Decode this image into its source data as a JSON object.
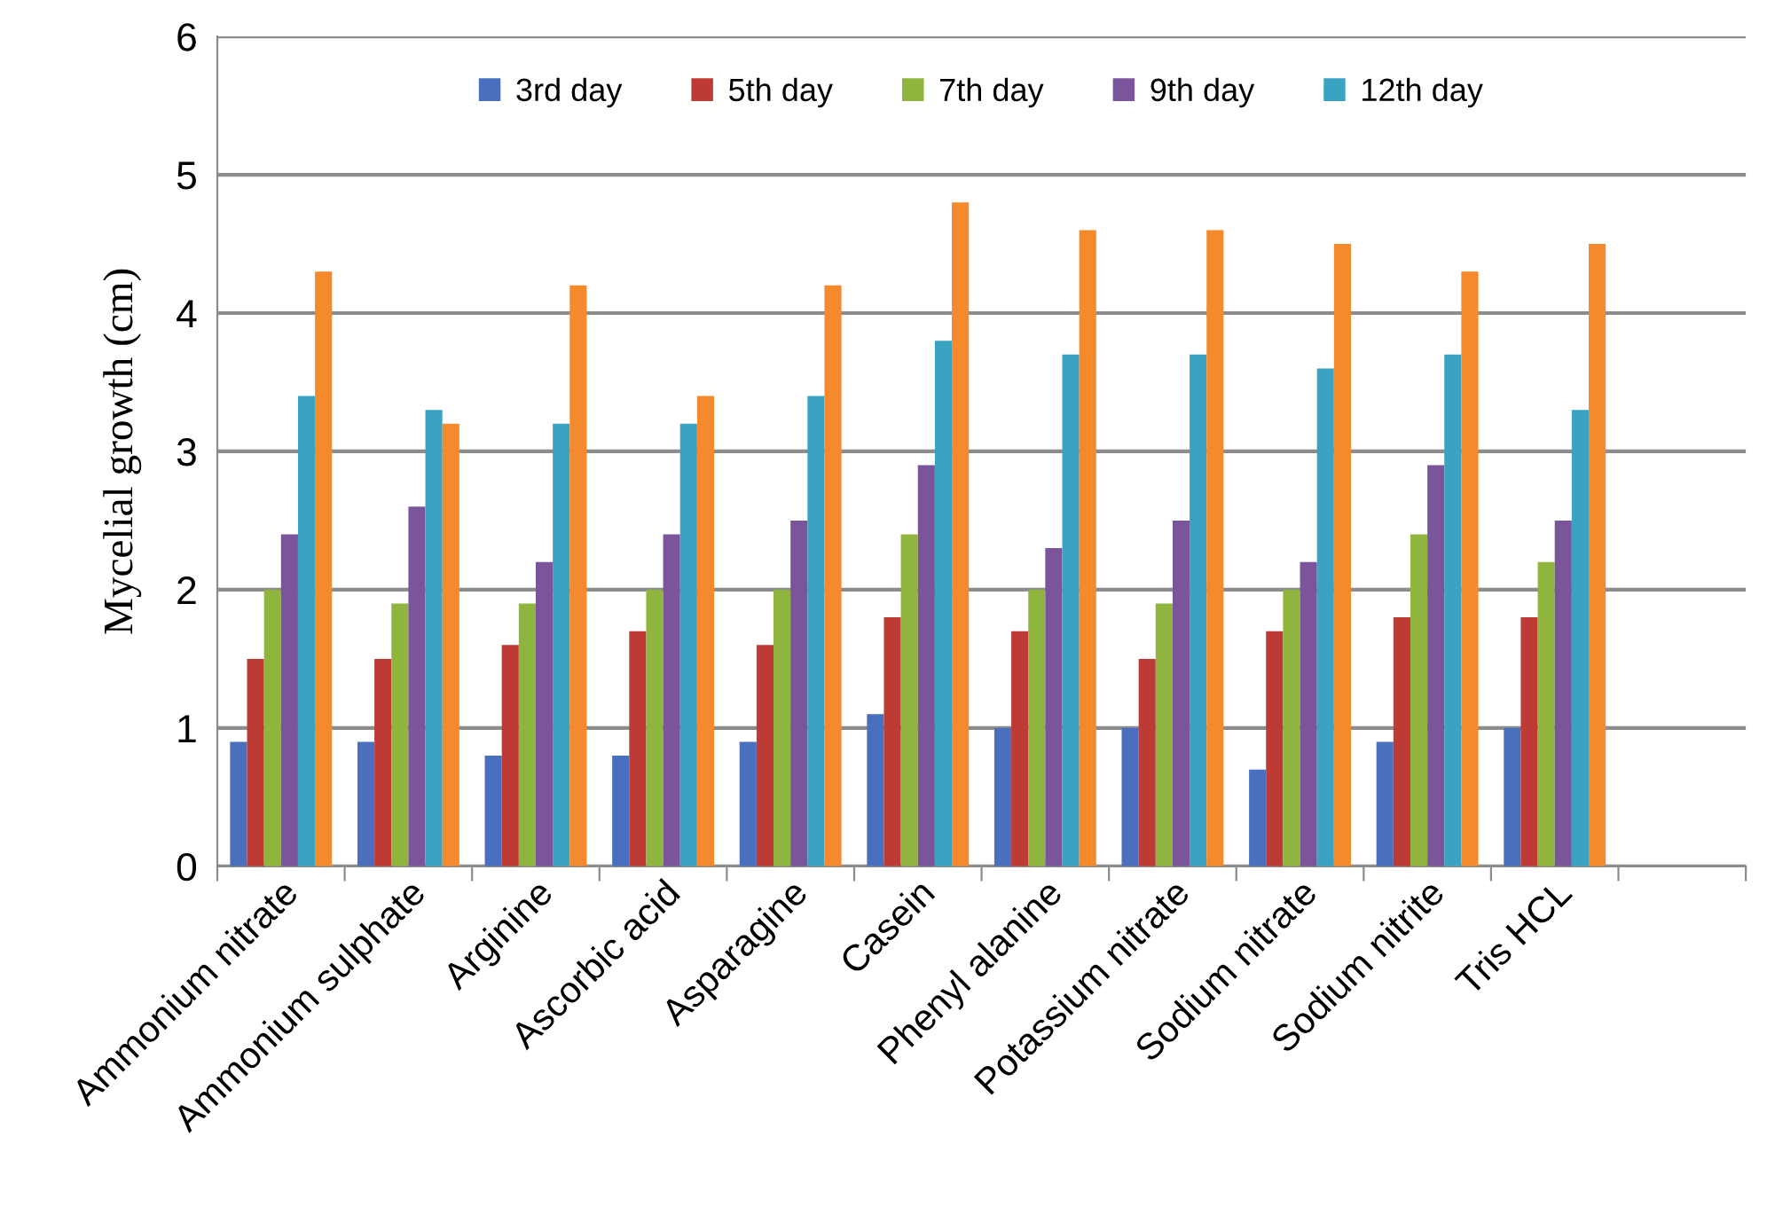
{
  "chart_data": {
    "type": "bar",
    "ylabel": "Mycelial growth (cm)",
    "categories": [
      "Ammonium nitrate",
      "Ammonium sulphate",
      "Arginine",
      "Ascorbic acid",
      "Asparagine",
      "Casein",
      "Phenyl alanine",
      "Potassium nitrate",
      "Sodium nitrate",
      "Sodium nitrite",
      "Tris HCL",
      null
    ],
    "series": [
      {
        "name": "3rd day",
        "color": "#4a6fbf",
        "values": [
          0.9,
          0.9,
          0.8,
          0.8,
          0.9,
          1.1,
          1.0,
          1.0,
          0.7,
          0.9,
          1.0,
          null
        ]
      },
      {
        "name": "5th day",
        "color": "#be3a34",
        "values": [
          1.5,
          1.5,
          1.6,
          1.7,
          1.6,
          1.8,
          1.7,
          1.5,
          1.7,
          1.8,
          1.8,
          null
        ]
      },
      {
        "name": "7th day",
        "color": "#8fb53e",
        "values": [
          2.0,
          1.9,
          1.9,
          2.0,
          2.0,
          2.4,
          2.0,
          1.9,
          2.0,
          2.4,
          2.2,
          null
        ]
      },
      {
        "name": "9th day",
        "color": "#7a559c",
        "values": [
          2.4,
          2.6,
          2.2,
          2.4,
          2.5,
          2.9,
          2.3,
          2.5,
          2.2,
          2.9,
          2.5,
          null
        ]
      },
      {
        "name": "12th day",
        "color": "#3ba3c2",
        "values": [
          3.4,
          3.3,
          3.2,
          3.2,
          3.4,
          3.8,
          3.7,
          3.7,
          3.6,
          3.7,
          3.3,
          null
        ]
      },
      {
        "color": "#f58a2c",
        "values": [
          4.3,
          3.2,
          4.2,
          3.4,
          4.2,
          4.8,
          4.6,
          4.6,
          4.5,
          4.3,
          4.5,
          null
        ]
      }
    ],
    "ylim": [
      0,
      6
    ],
    "yticks": [
      0,
      1,
      2,
      3,
      4,
      5,
      6
    ],
    "grid": "y",
    "legend": "top"
  }
}
